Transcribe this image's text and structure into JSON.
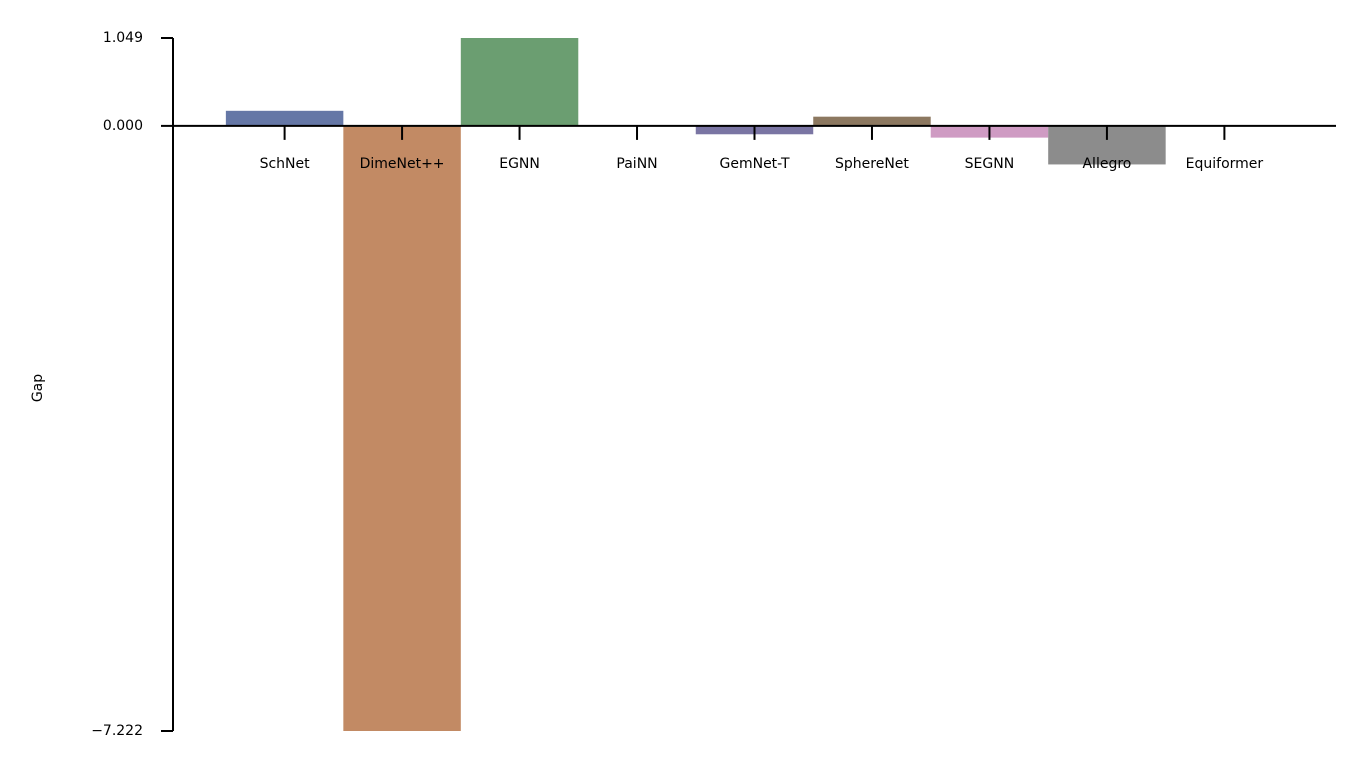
{
  "chart_data": {
    "type": "bar",
    "ylabel": "Gap",
    "categories": [
      "SchNet",
      "DimeNet++",
      "EGNN",
      "PaiNN",
      "GemNet-T",
      "SphereNet",
      "SEGNN",
      "Allegro",
      "Equiformer"
    ],
    "values": [
      0.18,
      -7.222,
      1.049,
      0,
      -0.1,
      0.11,
      -0.14,
      -0.46,
      0
    ],
    "colors": [
      "#6577a6",
      "#c28a64",
      "#6b9e71",
      "#b55d60",
      "#7a75a3",
      "#8c7860",
      "#cf9bc3",
      "#8c8c8c",
      "#c9b97a"
    ],
    "ylim": [
      -7.222,
      1.049
    ],
    "yticks": [
      1.049,
      {
        "value": 0,
        "label": "0.000"
      },
      {
        "value": -7.222,
        "label": "−7.222"
      }
    ]
  }
}
